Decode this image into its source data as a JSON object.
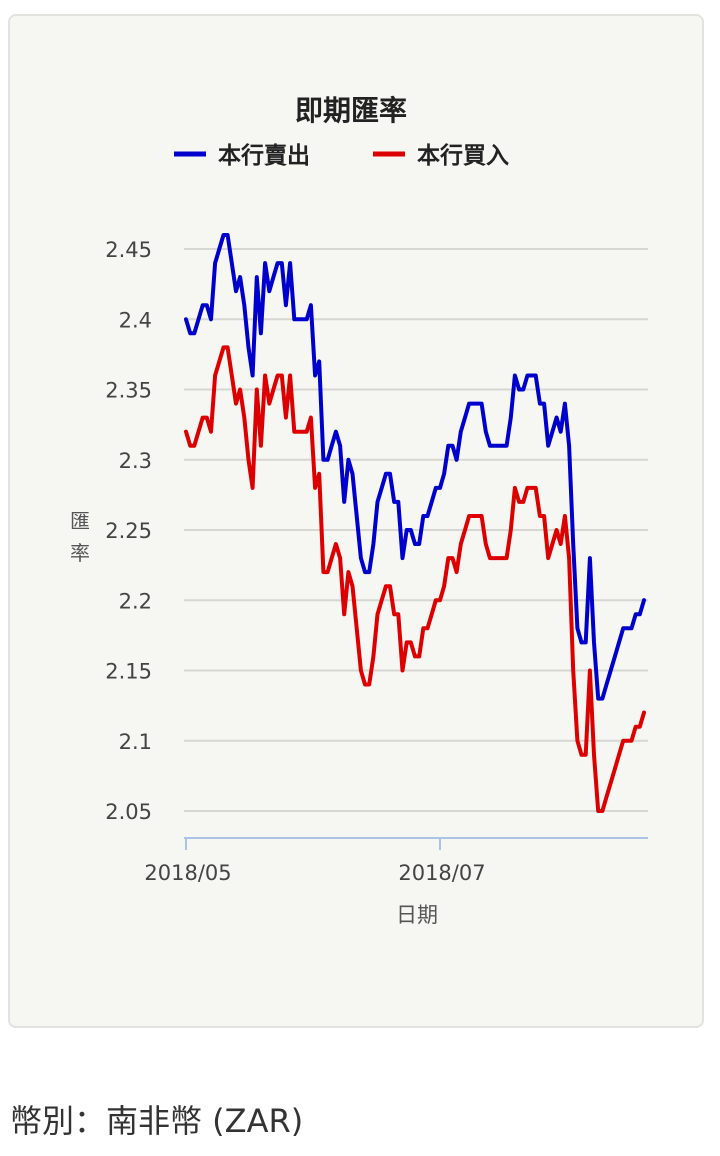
{
  "chart_data": {
    "type": "line",
    "title": "即期匯率",
    "xlabel": "日期",
    "ylabel": "匯率",
    "x_start": "2018-05-01",
    "x_tick_labels": [
      "2018/05",
      "2018/07"
    ],
    "x_ticks": [
      0,
      61
    ],
    "ylim": [
      2.03,
      2.475
    ],
    "y_ticks": [
      2.05,
      2.1,
      2.15,
      2.2,
      2.25,
      2.3,
      2.35,
      2.4,
      2.45
    ],
    "y_tick_labels": [
      "2.05",
      "2.1",
      "2.15",
      "2.2",
      "2.25",
      "2.3",
      "2.35",
      "2.4",
      "2.45"
    ],
    "grid": true,
    "legend_position": "top",
    "series": [
      {
        "name": "本行賣出",
        "color": "#0000cc",
        "points": [
          [
            0,
            2.4
          ],
          [
            1,
            2.39
          ],
          [
            2,
            2.39
          ],
          [
            3,
            2.4
          ],
          [
            4,
            2.41
          ],
          [
            5,
            2.41
          ],
          [
            6,
            2.4
          ],
          [
            7,
            2.44
          ],
          [
            8,
            2.45
          ],
          [
            9,
            2.46
          ],
          [
            10,
            2.46
          ],
          [
            11,
            2.44
          ],
          [
            12,
            2.42
          ],
          [
            13,
            2.43
          ],
          [
            14,
            2.41
          ],
          [
            15,
            2.38
          ],
          [
            16,
            2.36
          ],
          [
            17,
            2.43
          ],
          [
            18,
            2.39
          ],
          [
            19,
            2.44
          ],
          [
            20,
            2.42
          ],
          [
            21,
            2.43
          ],
          [
            22,
            2.44
          ],
          [
            23,
            2.44
          ],
          [
            24,
            2.41
          ],
          [
            25,
            2.44
          ],
          [
            26,
            2.4
          ],
          [
            27,
            2.4
          ],
          [
            28,
            2.4
          ],
          [
            29,
            2.4
          ],
          [
            30,
            2.41
          ],
          [
            31,
            2.36
          ],
          [
            32,
            2.37
          ],
          [
            33,
            2.3
          ],
          [
            34,
            2.3
          ],
          [
            35,
            2.31
          ],
          [
            36,
            2.32
          ],
          [
            37,
            2.31
          ],
          [
            38,
            2.27
          ],
          [
            39,
            2.3
          ],
          [
            40,
            2.29
          ],
          [
            41,
            2.26
          ],
          [
            42,
            2.23
          ],
          [
            43,
            2.22
          ],
          [
            44,
            2.22
          ],
          [
            45,
            2.24
          ],
          [
            46,
            2.27
          ],
          [
            47,
            2.28
          ],
          [
            48,
            2.29
          ],
          [
            49,
            2.29
          ],
          [
            50,
            2.27
          ],
          [
            51,
            2.27
          ],
          [
            52,
            2.23
          ],
          [
            53,
            2.25
          ],
          [
            54,
            2.25
          ],
          [
            55,
            2.24
          ],
          [
            56,
            2.24
          ],
          [
            57,
            2.26
          ],
          [
            58,
            2.26
          ],
          [
            59,
            2.27
          ],
          [
            60,
            2.28
          ],
          [
            61,
            2.28
          ],
          [
            62,
            2.29
          ],
          [
            63,
            2.31
          ],
          [
            64,
            2.31
          ],
          [
            65,
            2.3
          ],
          [
            66,
            2.32
          ],
          [
            67,
            2.33
          ],
          [
            68,
            2.34
          ],
          [
            69,
            2.34
          ],
          [
            70,
            2.34
          ],
          [
            71,
            2.34
          ],
          [
            72,
            2.32
          ],
          [
            73,
            2.31
          ],
          [
            74,
            2.31
          ],
          [
            75,
            2.31
          ],
          [
            76,
            2.31
          ],
          [
            77,
            2.31
          ],
          [
            78,
            2.33
          ],
          [
            79,
            2.36
          ],
          [
            80,
            2.35
          ],
          [
            81,
            2.35
          ],
          [
            82,
            2.36
          ],
          [
            83,
            2.36
          ],
          [
            84,
            2.36
          ],
          [
            85,
            2.34
          ],
          [
            86,
            2.34
          ],
          [
            87,
            2.31
          ],
          [
            88,
            2.32
          ],
          [
            89,
            2.33
          ],
          [
            90,
            2.32
          ],
          [
            91,
            2.34
          ],
          [
            92,
            2.31
          ],
          [
            93,
            2.24
          ],
          [
            94,
            2.18
          ],
          [
            95,
            2.17
          ],
          [
            96,
            2.17
          ],
          [
            97,
            2.23
          ],
          [
            98,
            2.17
          ],
          [
            99,
            2.13
          ],
          [
            100,
            2.13
          ],
          [
            101,
            2.14
          ],
          [
            102,
            2.15
          ],
          [
            103,
            2.16
          ],
          [
            104,
            2.17
          ],
          [
            105,
            2.18
          ],
          [
            106,
            2.18
          ],
          [
            107,
            2.18
          ],
          [
            108,
            2.19
          ],
          [
            109,
            2.19
          ],
          [
            110,
            2.2
          ]
        ]
      },
      {
        "name": "本行買入",
        "color": "#dd0000",
        "points": [
          [
            0,
            2.32
          ],
          [
            1,
            2.31
          ],
          [
            2,
            2.31
          ],
          [
            3,
            2.32
          ],
          [
            4,
            2.33
          ],
          [
            5,
            2.33
          ],
          [
            6,
            2.32
          ],
          [
            7,
            2.36
          ],
          [
            8,
            2.37
          ],
          [
            9,
            2.38
          ],
          [
            10,
            2.38
          ],
          [
            11,
            2.36
          ],
          [
            12,
            2.34
          ],
          [
            13,
            2.35
          ],
          [
            14,
            2.33
          ],
          [
            15,
            2.3
          ],
          [
            16,
            2.28
          ],
          [
            17,
            2.35
          ],
          [
            18,
            2.31
          ],
          [
            19,
            2.36
          ],
          [
            20,
            2.34
          ],
          [
            21,
            2.35
          ],
          [
            22,
            2.36
          ],
          [
            23,
            2.36
          ],
          [
            24,
            2.33
          ],
          [
            25,
            2.36
          ],
          [
            26,
            2.32
          ],
          [
            27,
            2.32
          ],
          [
            28,
            2.32
          ],
          [
            29,
            2.32
          ],
          [
            30,
            2.33
          ],
          [
            31,
            2.28
          ],
          [
            32,
            2.29
          ],
          [
            33,
            2.22
          ],
          [
            34,
            2.22
          ],
          [
            35,
            2.23
          ],
          [
            36,
            2.24
          ],
          [
            37,
            2.23
          ],
          [
            38,
            2.19
          ],
          [
            39,
            2.22
          ],
          [
            40,
            2.21
          ],
          [
            41,
            2.18
          ],
          [
            42,
            2.15
          ],
          [
            43,
            2.14
          ],
          [
            44,
            2.14
          ],
          [
            45,
            2.16
          ],
          [
            46,
            2.19
          ],
          [
            47,
            2.2
          ],
          [
            48,
            2.21
          ],
          [
            49,
            2.21
          ],
          [
            50,
            2.19
          ],
          [
            51,
            2.19
          ],
          [
            52,
            2.15
          ],
          [
            53,
            2.17
          ],
          [
            54,
            2.17
          ],
          [
            55,
            2.16
          ],
          [
            56,
            2.16
          ],
          [
            57,
            2.18
          ],
          [
            58,
            2.18
          ],
          [
            59,
            2.19
          ],
          [
            60,
            2.2
          ],
          [
            61,
            2.2
          ],
          [
            62,
            2.21
          ],
          [
            63,
            2.23
          ],
          [
            64,
            2.23
          ],
          [
            65,
            2.22
          ],
          [
            66,
            2.24
          ],
          [
            67,
            2.25
          ],
          [
            68,
            2.26
          ],
          [
            69,
            2.26
          ],
          [
            70,
            2.26
          ],
          [
            71,
            2.26
          ],
          [
            72,
            2.24
          ],
          [
            73,
            2.23
          ],
          [
            74,
            2.23
          ],
          [
            75,
            2.23
          ],
          [
            76,
            2.23
          ],
          [
            77,
            2.23
          ],
          [
            78,
            2.25
          ],
          [
            79,
            2.28
          ],
          [
            80,
            2.27
          ],
          [
            81,
            2.27
          ],
          [
            82,
            2.28
          ],
          [
            83,
            2.28
          ],
          [
            84,
            2.28
          ],
          [
            85,
            2.26
          ],
          [
            86,
            2.26
          ],
          [
            87,
            2.23
          ],
          [
            88,
            2.24
          ],
          [
            89,
            2.25
          ],
          [
            90,
            2.24
          ],
          [
            91,
            2.26
          ],
          [
            92,
            2.23
          ],
          [
            93,
            2.15
          ],
          [
            94,
            2.1
          ],
          [
            95,
            2.09
          ],
          [
            96,
            2.09
          ],
          [
            97,
            2.15
          ],
          [
            98,
            2.09
          ],
          [
            99,
            2.05
          ],
          [
            100,
            2.05
          ],
          [
            101,
            2.06
          ],
          [
            102,
            2.07
          ],
          [
            103,
            2.08
          ],
          [
            104,
            2.09
          ],
          [
            105,
            2.1
          ],
          [
            106,
            2.1
          ],
          [
            107,
            2.1
          ],
          [
            108,
            2.11
          ],
          [
            109,
            2.11
          ],
          [
            110,
            2.12
          ]
        ]
      }
    ]
  },
  "footer": {
    "currency_label": "幣別：南非幣 (ZAR)"
  }
}
